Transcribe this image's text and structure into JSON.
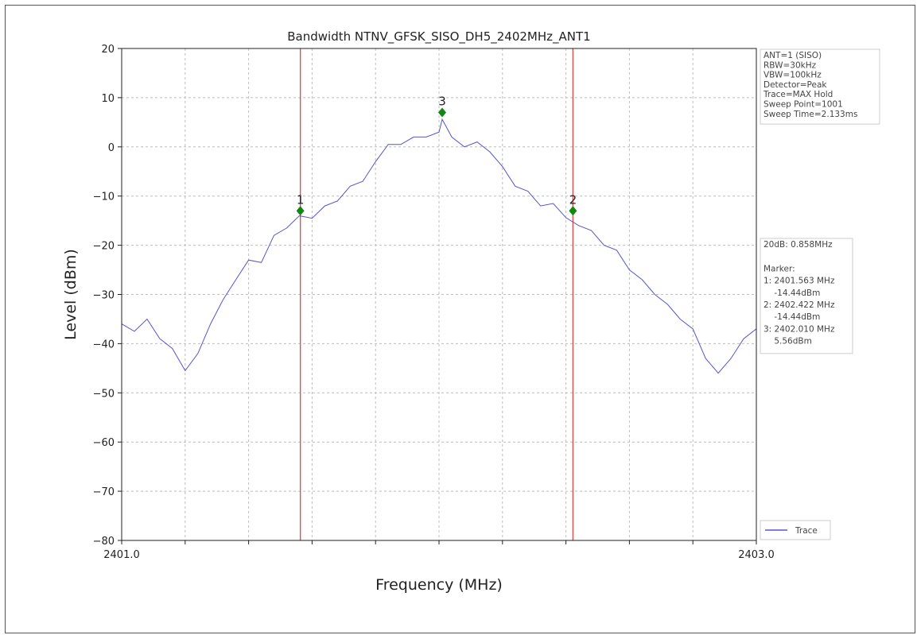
{
  "chart_data": {
    "type": "line",
    "title": "Bandwidth NTNV_GFSK_SISO_DH5_2402MHz_ANT1",
    "xlabel": "Frequency (MHz)",
    "ylabel": "Level (dBm)",
    "xlim": [
      2401.0,
      2403.0
    ],
    "ylim": [
      -80,
      20
    ],
    "x_tick_labels": [
      "2401.0",
      "2403.0"
    ],
    "y_ticks": [
      20,
      10,
      0,
      -10,
      -20,
      -30,
      -40,
      -50,
      -60,
      -70,
      -80
    ],
    "y_tick_labels": [
      "20",
      "10",
      "0",
      "−10",
      "−20",
      "−30",
      "−40",
      "−50",
      "−60",
      "−70",
      "−80"
    ],
    "grid": true,
    "legend": {
      "placement": "lower-right",
      "entries": [
        "Trace"
      ]
    },
    "series": [
      {
        "name": "Trace",
        "color": "#5555cc",
        "x": [
          2401.0,
          2401.04,
          2401.08,
          2401.12,
          2401.16,
          2401.2,
          2401.24,
          2401.28,
          2401.32,
          2401.36,
          2401.4,
          2401.44,
          2401.48,
          2401.52,
          2401.56,
          2401.6,
          2401.64,
          2401.68,
          2401.72,
          2401.76,
          2401.8,
          2401.84,
          2401.88,
          2401.92,
          2401.96,
          2402.0,
          2402.01,
          2402.04,
          2402.08,
          2402.12,
          2402.16,
          2402.2,
          2402.24,
          2402.28,
          2402.32,
          2402.36,
          2402.4,
          2402.44,
          2402.48,
          2402.52,
          2402.56,
          2402.6,
          2402.64,
          2402.68,
          2402.72,
          2402.76,
          2402.8,
          2402.84,
          2402.88,
          2402.92,
          2402.96,
          2403.0
        ],
        "values": [
          -36,
          -37.5,
          -35,
          -39,
          -41,
          -45.5,
          -42,
          -36,
          -31,
          -27,
          -23,
          -23.5,
          -18,
          -16.5,
          -14,
          -14.5,
          -12,
          -11,
          -8,
          -7,
          -3,
          0.5,
          0.5,
          2,
          2,
          3,
          5.6,
          2,
          0,
          1,
          -1,
          -4,
          -8,
          -9,
          -12,
          -11.5,
          -14.4,
          -16,
          -17,
          -20,
          -21,
          -25,
          -27,
          -30,
          -32,
          -35,
          -37,
          -43,
          -46,
          -43,
          -39,
          -37
        ]
      }
    ],
    "markers": [
      {
        "label": "1",
        "x": 2401.563,
        "y": -13
      },
      {
        "label": "2",
        "x": 2402.422,
        "y": -13
      },
      {
        "label": "3",
        "x": 2402.01,
        "y": 7
      }
    ],
    "vlines": [
      2401.563,
      2402.422
    ],
    "vline_color": "#e05050",
    "marker_color": "#118811",
    "info_lines": [
      "ANT=1 (SISO)",
      "RBW=30kHz",
      "VBW=100kHz",
      "Detector=Peak",
      "Trace=MAX Hold",
      "Sweep Point=1001",
      "Sweep Time=2.133ms"
    ],
    "result_lines": [
      "20dB: 0.858MHz",
      "",
      "Marker:",
      "1: 2401.563 MHz",
      "    -14.44dBm",
      "2: 2402.422 MHz",
      "    -14.44dBm",
      "3: 2402.010 MHz",
      "    5.56dBm"
    ]
  }
}
